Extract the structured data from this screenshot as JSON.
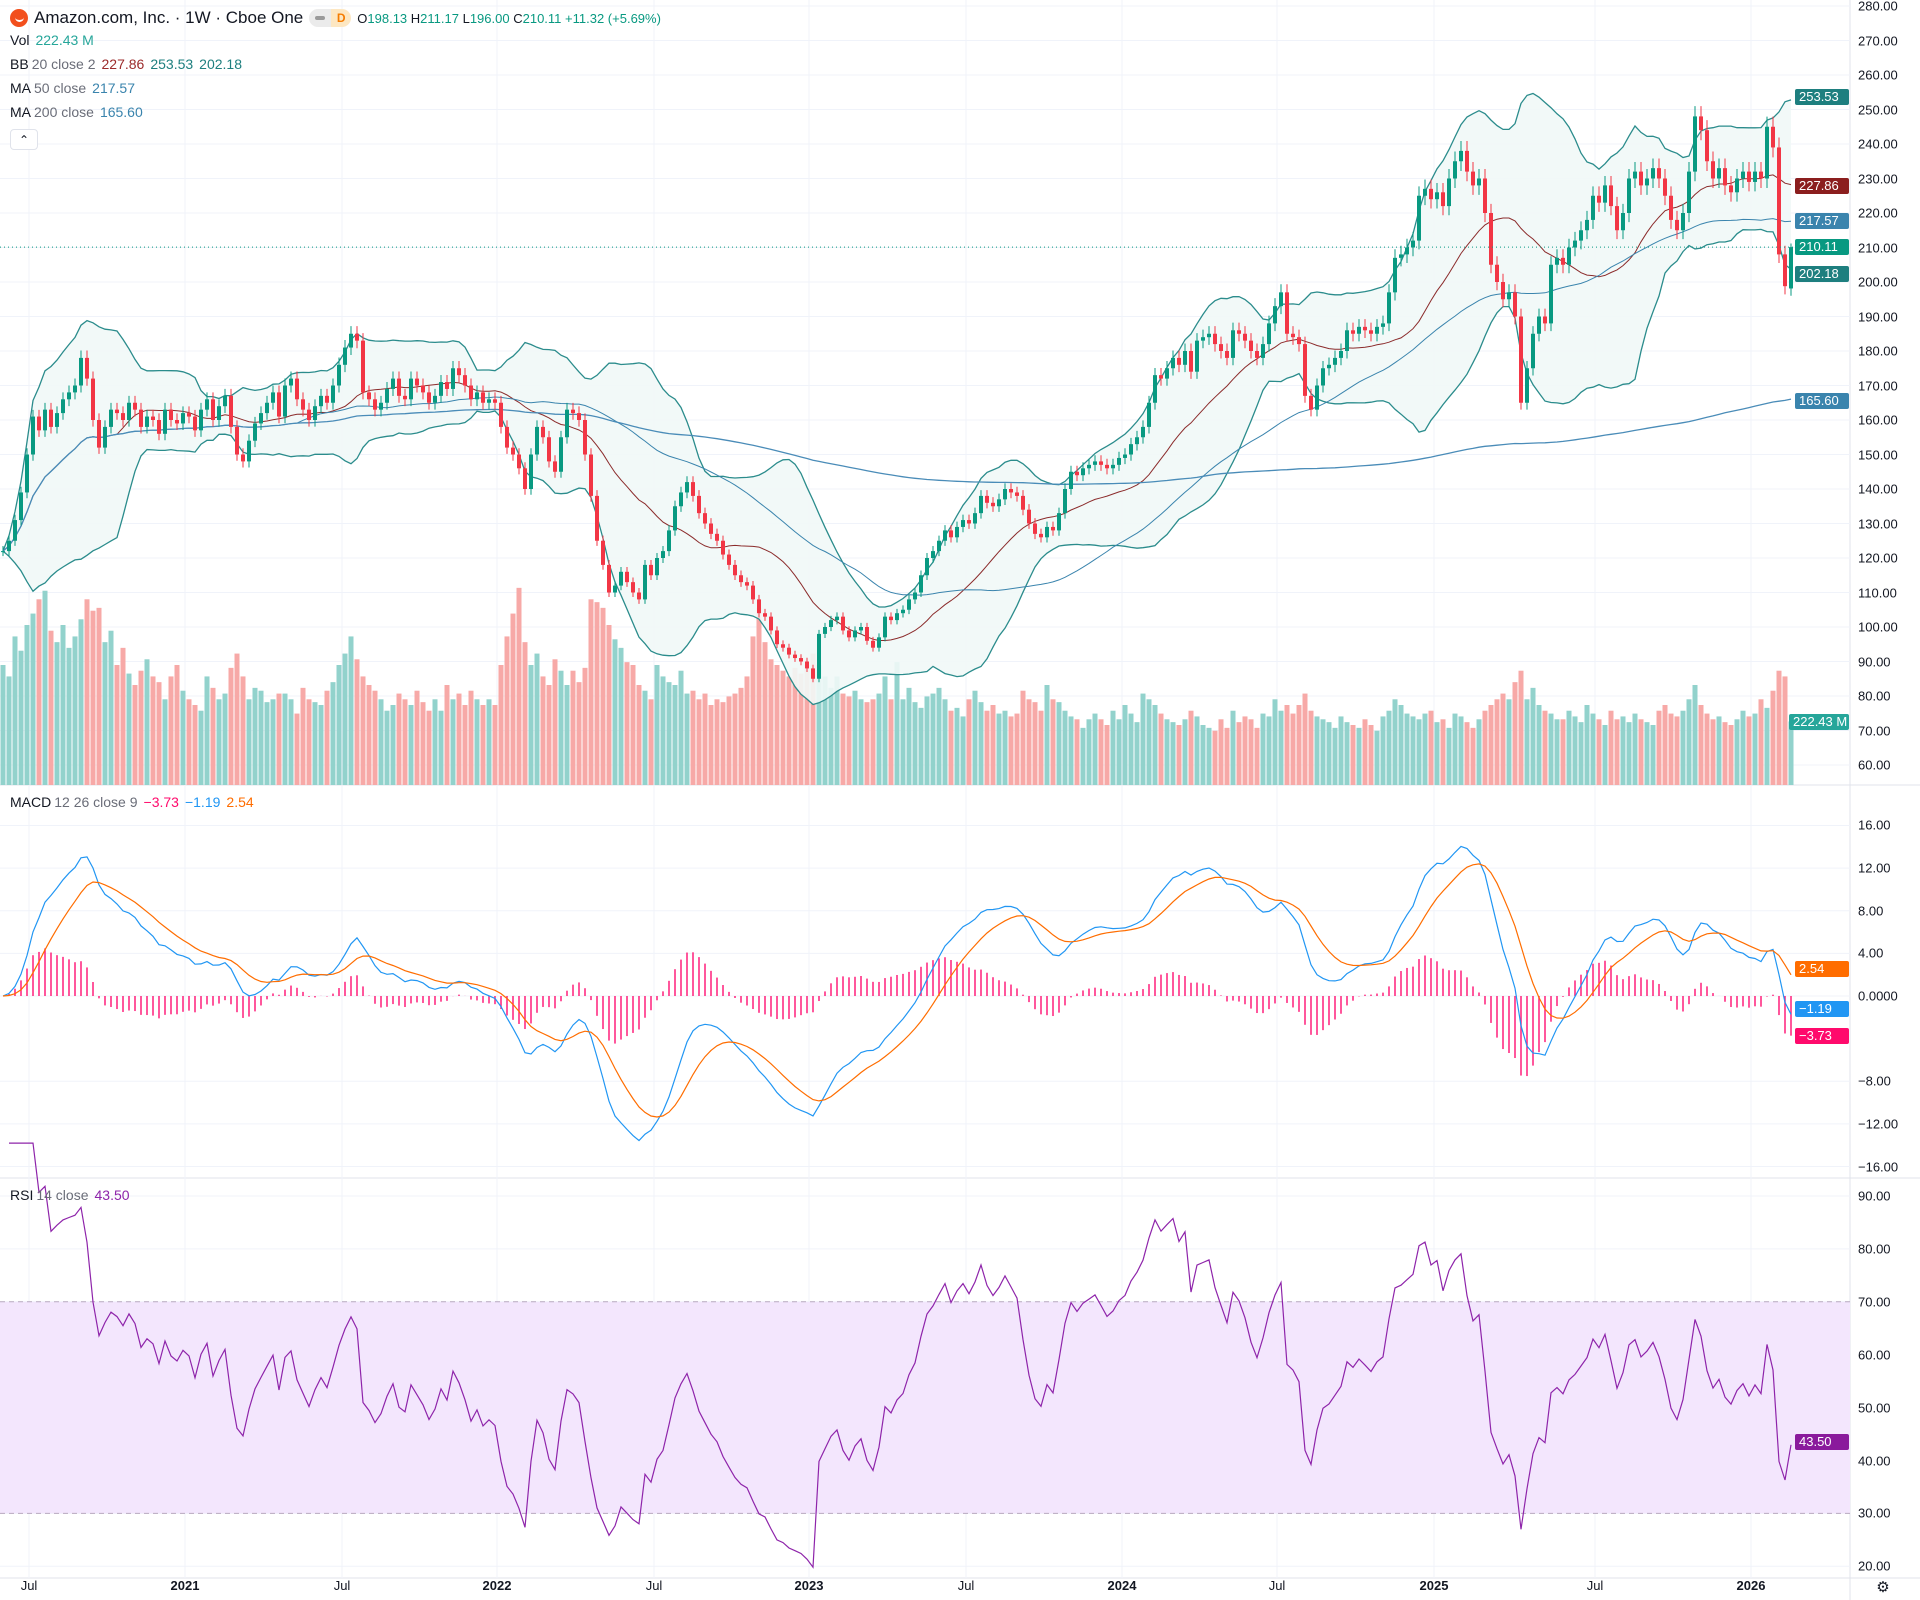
{
  "header": {
    "symbol_title": "Amazon.com, Inc. · 1W · Cboe One",
    "status_letter": "D",
    "o_label": "O",
    "o": "198.13",
    "h_label": "H",
    "h": "211.17",
    "l_label": "L",
    "l": "196.00",
    "c_label": "C",
    "c": "210.11",
    "change": "+11.32 (+5.69%)",
    "collapse_icon": "chevron-up"
  },
  "legends": {
    "vol": {
      "name": "Vol",
      "value": "222.43 M"
    },
    "bb": {
      "name": "BB",
      "params": "20 close 2",
      "basis": "227.86",
      "upper": "253.53",
      "lower": "202.18"
    },
    "ma50": {
      "name": "MA",
      "params": "50 close",
      "value": "217.57"
    },
    "ma200": {
      "name": "MA",
      "params": "200 close",
      "value": "165.60"
    },
    "macd": {
      "name": "MACD",
      "params": "12 26 close 9",
      "hist": "−3.73",
      "macd": "−1.19",
      "signal": "2.54"
    },
    "rsi": {
      "name": "RSI",
      "params": "14 close",
      "value": "43.50"
    }
  },
  "price_axis": {
    "ticks": [
      "280.00",
      "270.00",
      "260.00",
      "250.00",
      "240.00",
      "230.00",
      "220.00",
      "210.00",
      "200.00",
      "190.00",
      "180.00",
      "170.00",
      "160.00",
      "150.00",
      "140.00",
      "130.00",
      "120.00",
      "110.00",
      "100.00",
      "90.00",
      "80.00",
      "70.00",
      "60.00"
    ],
    "tags": [
      {
        "text": "253.53",
        "value": 253.53,
        "color": "#1e7f7f"
      },
      {
        "text": "227.86",
        "value": 227.86,
        "color": "#8b1e1e"
      },
      {
        "text": "217.57",
        "value": 217.57,
        "color": "#3a84ad"
      },
      {
        "text": "210.11",
        "value": 210.11,
        "color": "#089981"
      },
      {
        "text": "202.18",
        "value": 202.18,
        "color": "#1e7f7f"
      },
      {
        "text": "165.60",
        "value": 165.6,
        "color": "#3a84ad"
      }
    ],
    "volume_tag": {
      "text": "222.43 M",
      "color": "#26a69a"
    }
  },
  "macd_axis": {
    "ticks": [
      {
        "text": "16.00",
        "value": 16
      },
      {
        "text": "12.00",
        "value": 12
      },
      {
        "text": "8.00",
        "value": 8
      },
      {
        "text": "4.00",
        "value": 4
      },
      {
        "text": "0.0000",
        "value": 0
      },
      {
        "text": "−8.00",
        "value": -8
      },
      {
        "text": "−12.00",
        "value": -12
      },
      {
        "text": "−16.00",
        "value": -16
      }
    ],
    "tags": [
      {
        "text": "2.54",
        "value": 2.54,
        "color": "#ff6d00"
      },
      {
        "text": "−1.19",
        "value": -1.19,
        "color": "#2196f3"
      },
      {
        "text": "−3.73",
        "value": -3.73,
        "color": "#ff0a6c"
      }
    ]
  },
  "rsi_axis": {
    "ticks": [
      {
        "text": "90.00",
        "value": 90
      },
      {
        "text": "80.00",
        "value": 80
      },
      {
        "text": "70.00",
        "value": 70
      },
      {
        "text": "60.00",
        "value": 60
      },
      {
        "text": "50.00",
        "value": 50
      },
      {
        "text": "40.00",
        "value": 40
      },
      {
        "text": "30.00",
        "value": 30
      },
      {
        "text": "20.00",
        "value": 20
      }
    ],
    "tag": {
      "text": "43.50",
      "value": 43.5,
      "color": "#8a1a9c"
    }
  },
  "time_axis": {
    "labels": [
      {
        "text": "Jul",
        "year": false
      },
      {
        "text": "2021",
        "year": true
      },
      {
        "text": "Jul",
        "year": false
      },
      {
        "text": "2022",
        "year": true
      },
      {
        "text": "Jul",
        "year": false
      },
      {
        "text": "2023",
        "year": true
      },
      {
        "text": "Jul",
        "year": false
      },
      {
        "text": "2024",
        "year": true
      },
      {
        "text": "Jul",
        "year": false
      },
      {
        "text": "2025",
        "year": true
      },
      {
        "text": "Jul",
        "year": false
      },
      {
        "text": "2026",
        "year": true
      }
    ]
  },
  "colors": {
    "up": "#089981",
    "down": "#f23645",
    "vol_up": "#92d2cc",
    "vol_down": "#f7a9a7",
    "bb_band": "#2b8c8c",
    "bb_basis": "#8b2b2b",
    "bb_fill": "#f1f8f7",
    "ma50": "#3a84ad",
    "ma200": "#4a8cb8",
    "macd": "#2196f3",
    "signal": "#ff6d00",
    "hist": "#ff1f7a",
    "rsi": "#8e24aa",
    "rsi_band_fill": "#f3e6fd",
    "grid": "#f0f3fa"
  },
  "chart_data": {
    "type": "candlestick",
    "interval": "1W",
    "price_ylim": [
      60,
      280
    ],
    "macd_ylim": [
      -16,
      16
    ],
    "rsi_ylim": [
      20,
      90
    ],
    "last_candle": {
      "open": 198.13,
      "high": 211.17,
      "low": 196.0,
      "close": 210.11
    },
    "closes": [
      122,
      125,
      131,
      139,
      150,
      161,
      157,
      163,
      158,
      162,
      166,
      168,
      170,
      178,
      172,
      160,
      152,
      158,
      163,
      162,
      160,
      165,
      163,
      158,
      161,
      160,
      156,
      163,
      160,
      159,
      162,
      161,
      157,
      163,
      166,
      160,
      164,
      167,
      158,
      150,
      148,
      154,
      159,
      162,
      165,
      168,
      161,
      170,
      172,
      166,
      163,
      160,
      164,
      167,
      165,
      170,
      176,
      181,
      185,
      183,
      168,
      166,
      163,
      165,
      169,
      172,
      167,
      166,
      172,
      170,
      168,
      165,
      167,
      171,
      169,
      175,
      173,
      170,
      166,
      168,
      165,
      166,
      165,
      158,
      152,
      150,
      146,
      140,
      150,
      158,
      155,
      148,
      145,
      155,
      163,
      162,
      160,
      150,
      138,
      125,
      118,
      110,
      112,
      116,
      113,
      110,
      108,
      118,
      115,
      120,
      122,
      128,
      135,
      139,
      142,
      138,
      133,
      130,
      127,
      125,
      121,
      118,
      115,
      113,
      112,
      108,
      104,
      103,
      99,
      95,
      94,
      92,
      91,
      90,
      88,
      85,
      98,
      100,
      102,
      103,
      99,
      97,
      99,
      100,
      96,
      94,
      97,
      103,
      102,
      104,
      105,
      108,
      110,
      115,
      120,
      122,
      125,
      128,
      126,
      129,
      131,
      130,
      133,
      138,
      136,
      135,
      137,
      140,
      139,
      138,
      134,
      130,
      127,
      126,
      129,
      128,
      133,
      140,
      145,
      144,
      146,
      147,
      148,
      147,
      146,
      147,
      149,
      150,
      153,
      155,
      158,
      165,
      173,
      172,
      175,
      178,
      176,
      180,
      174,
      183,
      184,
      185,
      182,
      180,
      178,
      186,
      185,
      183,
      180,
      178,
      182,
      188,
      193,
      197,
      185,
      184,
      182,
      167,
      163,
      170,
      175,
      176,
      178,
      180,
      186,
      185,
      187,
      186,
      185,
      187,
      188,
      197,
      207,
      208,
      210,
      212,
      225,
      227,
      224,
      226,
      222,
      230,
      235,
      238,
      232,
      228,
      230,
      220,
      205,
      200,
      195,
      197,
      190,
      165,
      175,
      185,
      190,
      188,
      205,
      207,
      205,
      210,
      212,
      215,
      218,
      225,
      223,
      228,
      222,
      215,
      220,
      230,
      232,
      228,
      230,
      233,
      230,
      225,
      218,
      215,
      220,
      232,
      248,
      244,
      235,
      230,
      233,
      228,
      226,
      230,
      232,
      229,
      232,
      230,
      245,
      239,
      208,
      198.79,
      210.11
    ],
    "volumes_millions": [
      420,
      380,
      520,
      470,
      560,
      600,
      650,
      680,
      540,
      500,
      560,
      480,
      520,
      580,
      650,
      610,
      620,
      500,
      540,
      420,
      480,
      390,
      350,
      400,
      440,
      380,
      360,
      300,
      380,
      420,
      330,
      300,
      280,
      260,
      380,
      340,
      300,
      320,
      410,
      460,
      380,
      300,
      340,
      330,
      290,
      300,
      320,
      320,
      300,
      250,
      340,
      300,
      290,
      280,
      330,
      360,
      420,
      460,
      520,
      440,
      380,
      350,
      330,
      300,
      260,
      280,
      320,
      300,
      280,
      330,
      290,
      260,
      300,
      260,
      350,
      300,
      320,
      280,
      330,
      300,
      280,
      300,
      280,
      420,
      520,
      600,
      690,
      500,
      420,
      460,
      380,
      350,
      440,
      400,
      350,
      400,
      360,
      410,
      650,
      640,
      620,
      560,
      510,
      480,
      430,
      420,
      350,
      330,
      300,
      420,
      380,
      360,
      350,
      400,
      320,
      330,
      300,
      320,
      280,
      300,
      290,
      310,
      320,
      340,
      380,
      520,
      620,
      500,
      440,
      420,
      400,
      380,
      410,
      390,
      420,
      460,
      420,
      380,
      340,
      380,
      320,
      310,
      330,
      300,
      290,
      300,
      320,
      380,
      300,
      430,
      300,
      340,
      290,
      270,
      310,
      320,
      340,
      300,
      260,
      270,
      240,
      300,
      330,
      290,
      260,
      280,
      250,
      260,
      240,
      250,
      330,
      300,
      290,
      260,
      350,
      300,
      290,
      260,
      240,
      230,
      200,
      230,
      250,
      230,
      210,
      260,
      230,
      280,
      250,
      220,
      320,
      300,
      280,
      250,
      230,
      220,
      210,
      230,
      260,
      240,
      210,
      200,
      190,
      230,
      200,
      260,
      220,
      240,
      230,
      200,
      250,
      240,
      300,
      260,
      280,
      250,
      280,
      320,
      260,
      240,
      230,
      220,
      200,
      240,
      220,
      210,
      200,
      230,
      210,
      190,
      240,
      260,
      300,
      280,
      250,
      240,
      230,
      250,
      260,
      220,
      230,
      200,
      250,
      240,
      220,
      200,
      230,
      260,
      280,
      300,
      320,
      300,
      360,
      400,
      300,
      340,
      280,
      260,
      250,
      230,
      230,
      260,
      240,
      220,
      280,
      250,
      230,
      210,
      260,
      230,
      240,
      220,
      250,
      230,
      220,
      210,
      260,
      280,
      250,
      240,
      260,
      300,
      350,
      280,
      250,
      230,
      240,
      220,
      210,
      230,
      260,
      240,
      250,
      300,
      270,
      330,
      400,
      380,
      222.43
    ],
    "indicators": [
      "Volume",
      "Bollinger Bands 20 close 2",
      "MA 50 close",
      "MA 200 close",
      "MACD 12 26 close 9",
      "RSI 14 close"
    ]
  }
}
